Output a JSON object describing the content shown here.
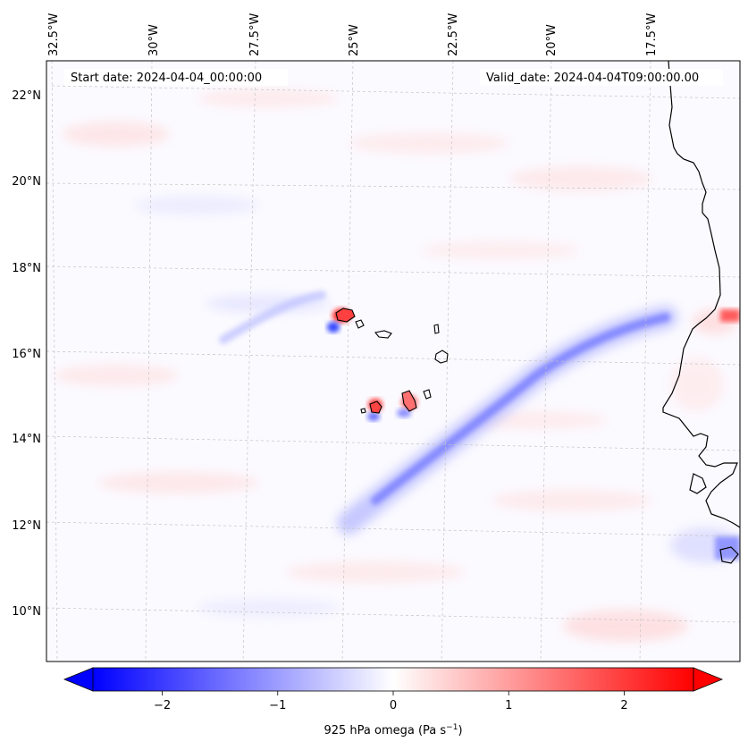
{
  "header": {
    "start_date": "Start date: 2024-04-04_00:00:00",
    "valid_date": "Valid_date: 2024-04-04T09:00:00.00"
  },
  "map": {
    "lon_labels": [
      "32.5°W",
      "30°W",
      "27.5°W",
      "25°W",
      "22.5°W",
      "20°W",
      "17.5°W"
    ],
    "lat_labels": [
      "22°N",
      "20°N",
      "18°N",
      "16°N",
      "14°N",
      "12°N",
      "10°N"
    ],
    "field_name": "925 hPa omega",
    "colors": {
      "coastline": "#000000",
      "gridline": "#bbbbbb",
      "negative": "#0000ff",
      "positive": "#ff0000",
      "neutral": "#ffffff"
    }
  },
  "colorbar": {
    "min": -2.6,
    "max": 2.6,
    "ticks": [
      -2,
      -1,
      0,
      1,
      2
    ],
    "tick_labels": [
      "−2",
      "−1",
      "0",
      "1",
      "2"
    ],
    "label_text": "925 hPa omega (Pa s",
    "label_exponent": "−1",
    "label_close": ")"
  }
}
